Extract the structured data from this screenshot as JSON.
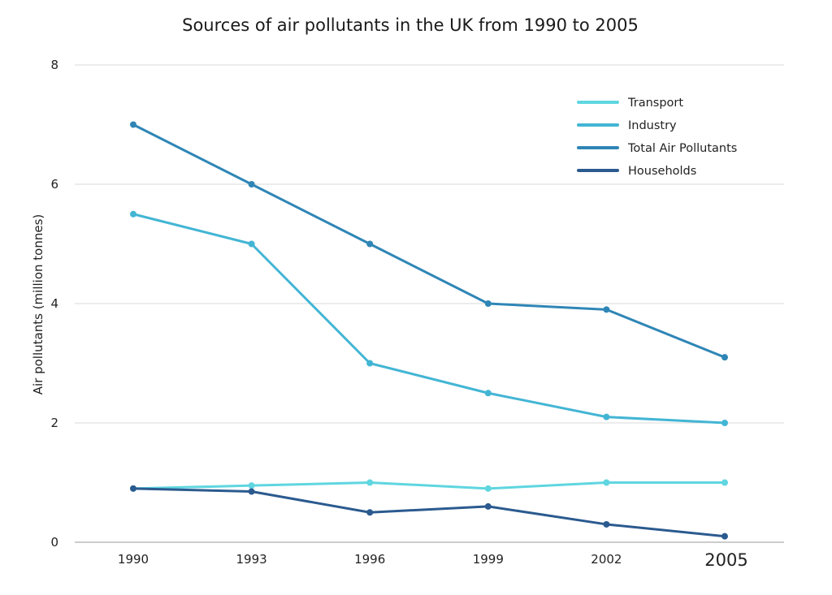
{
  "chart_data": {
    "type": "line",
    "title": "Sources of air pollutants in the UK from 1990 to 2005",
    "xlabel": "",
    "ylabel": "Air pollutants (million tonnes)",
    "categories": [
      "1990",
      "1993",
      "1996",
      "1999",
      "2002",
      "2005"
    ],
    "ylim": [
      0,
      8
    ],
    "yticks": [
      0,
      2,
      4,
      6,
      8
    ],
    "grid": true,
    "legend_position": "top-right",
    "series": [
      {
        "name": "Transport",
        "color": "#5fd6e0",
        "values": [
          0.9,
          0.95,
          1.0,
          0.9,
          1.0,
          1.0
        ]
      },
      {
        "name": "Industry",
        "color": "#43b5d4",
        "values": [
          5.5,
          5.0,
          3.0,
          2.5,
          2.1,
          2.0
        ]
      },
      {
        "name": "Total Air Pollutants",
        "color": "#2f86b6",
        "values": [
          7.0,
          6.0,
          5.0,
          4.0,
          3.9,
          3.1
        ]
      },
      {
        "name": "Households",
        "color": "#2b5a8f",
        "values": [
          0.9,
          0.85,
          0.5,
          0.6,
          0.3,
          0.1
        ]
      }
    ]
  }
}
